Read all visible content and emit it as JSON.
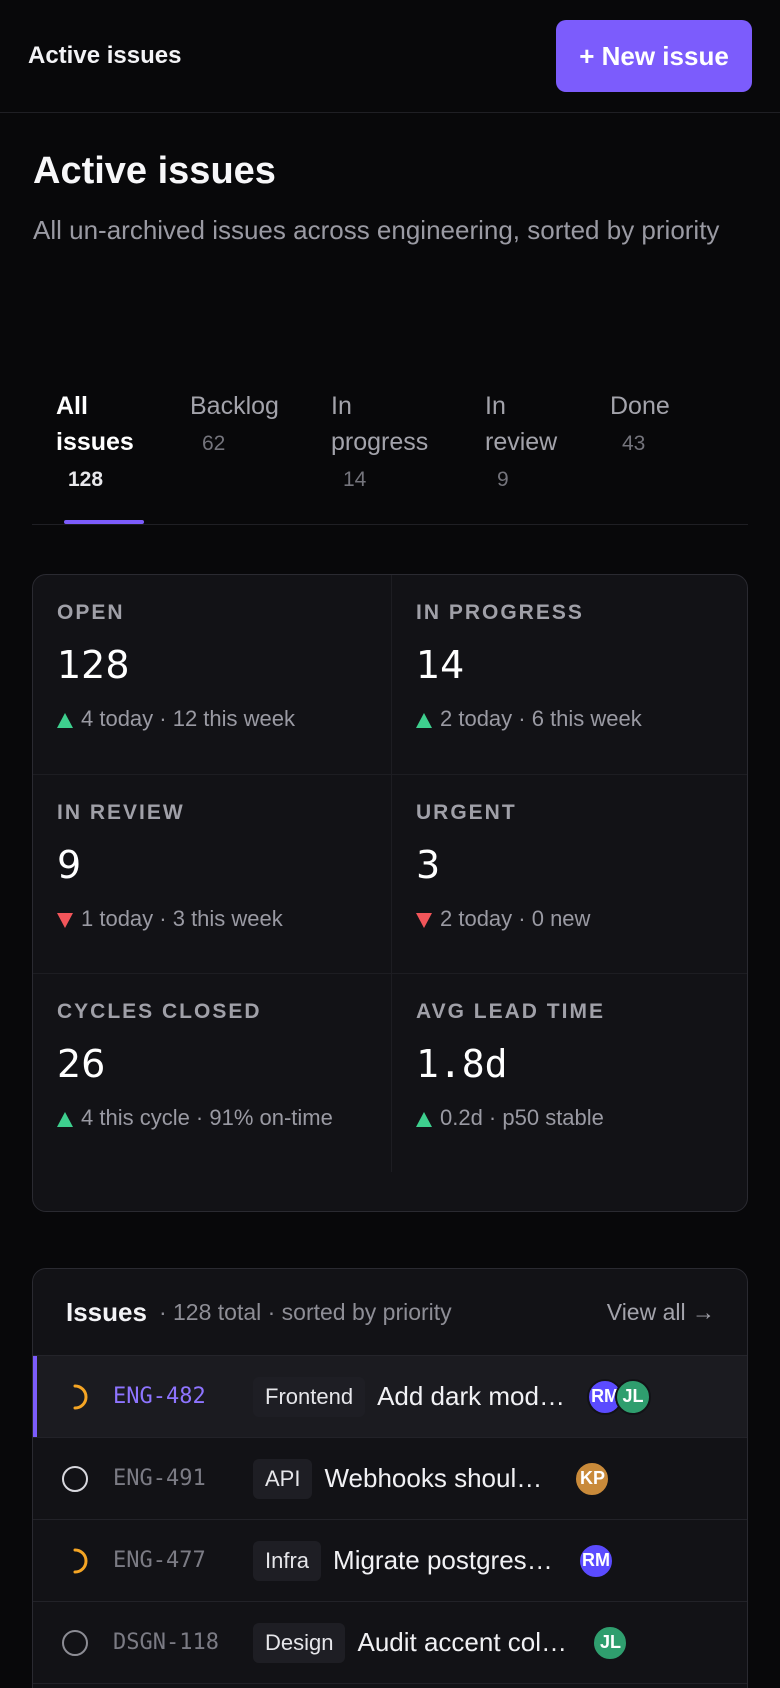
{
  "topbar": {
    "title": "Active issues",
    "new_issue_label": "+ New issue"
  },
  "header": {
    "title": "Active issues",
    "subtitle": "All un-archived issues across engineering, sorted by priority"
  },
  "tabs": [
    {
      "label_line1": "All",
      "label_line2": "issues",
      "count": "128",
      "active": true
    },
    {
      "label_line1": "Backlog",
      "label_line2": "",
      "count": "62",
      "active": false
    },
    {
      "label_line1": "In",
      "label_line2": "progress",
      "count": "14",
      "active": false
    },
    {
      "label_line1": "In",
      "label_line2": "review",
      "count": "9",
      "active": false
    },
    {
      "label_line1": "Done",
      "label_line2": "",
      "count": "43",
      "active": false
    }
  ],
  "stats": [
    {
      "label": "OPEN",
      "value": "128",
      "trend": "up",
      "meta": "4 today · 12 this week"
    },
    {
      "label": "IN PROGRESS",
      "value": "14",
      "trend": "up",
      "meta": "2 today · 6 this week"
    },
    {
      "label": "IN REVIEW",
      "value": "9",
      "trend": "down",
      "meta": "1 today · 3 this week"
    },
    {
      "label": "URGENT",
      "value": "3",
      "trend": "down",
      "meta": "2 today · 0 new"
    },
    {
      "label": "CYCLES CLOSED",
      "value": "26",
      "trend": "up",
      "meta": "4 this cycle · 91% on-time"
    },
    {
      "label": "AVG LEAD TIME",
      "value": "1.8d",
      "trend": "up",
      "meta": "0.2d · p50 stable"
    }
  ],
  "issues": {
    "title": "Issues",
    "meta": "· 128 total · sorted by priority",
    "view_all": "View all →",
    "rows": [
      {
        "status": "in-progress",
        "id": "ENG-482",
        "tag": "Frontend",
        "title": "Add dark mode toggle",
        "assignees": [
          "RM",
          "JL"
        ]
      },
      {
        "status": "todo",
        "id": "ENG-491",
        "tag": "API",
        "title": "Webhooks should retry on failure",
        "assignees": [
          "KP"
        ]
      },
      {
        "status": "in-progress",
        "id": "ENG-477",
        "tag": "Infra",
        "title": "Migrate postgres cluster",
        "assignees": [
          "RM"
        ]
      },
      {
        "status": "todo",
        "id": "DSGN-118",
        "tag": "Design",
        "title": "Audit accent colors",
        "assignees": [
          "JL"
        ]
      }
    ]
  },
  "colors": {
    "accent": "#7c5cfc",
    "up": "#3ecf8e",
    "down": "#f2555a",
    "in_progress": "#f5a524",
    "avatar_RM": "#5b4bff",
    "avatar_JL": "#2f9e6e",
    "avatar_KP": "#c98a3a"
  }
}
